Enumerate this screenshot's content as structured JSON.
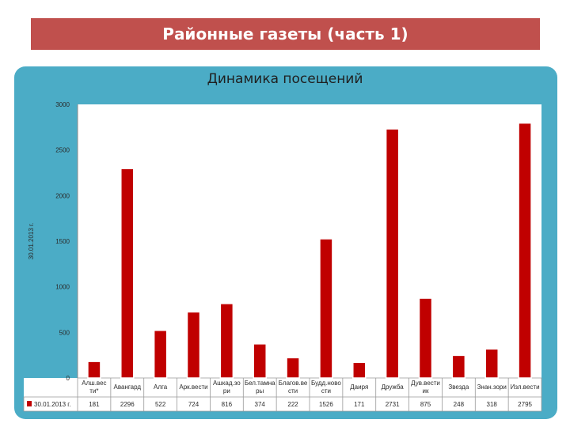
{
  "header": {
    "title": "Районные газеты (часть 1)"
  },
  "colors": {
    "banner": "#c0504d",
    "panel": "#4bacc6",
    "bar": "#c00000",
    "plot_bg": "#ffffff"
  },
  "chart_data": {
    "type": "bar",
    "title": "Динамика посещений",
    "ylabel": "30.01.2013 г.",
    "ylim": [
      0,
      3000
    ],
    "yticks": [
      0,
      500,
      1000,
      1500,
      2000,
      2500,
      3000
    ],
    "categories": [
      "Алш.вес ти*",
      "Авангард",
      "Алга",
      "Арк.вести",
      "Ашкад.зо ри",
      "Бел.тамна ры",
      "Благов.ве сти",
      "Будд.ново сти",
      "Даиря",
      "Дружба",
      "Дув.вести ик",
      "Звезда",
      "Знан.зори",
      "Изл.вести"
    ],
    "series": [
      {
        "name": "30.01.2013 г.",
        "values": [
          181,
          2296,
          522,
          724,
          816,
          374,
          222,
          1526,
          171,
          2731,
          875,
          248,
          318,
          2795
        ]
      }
    ],
    "legend": "table-left",
    "data_table": true,
    "grid": false
  }
}
